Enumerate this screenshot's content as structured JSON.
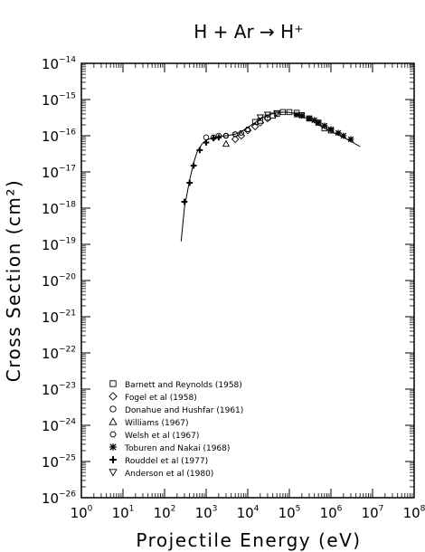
{
  "chart_data": {
    "type": "scatter",
    "title": "H + Ar → H⁺",
    "xlabel": "Projectile Energy (eV)",
    "ylabel": "Cross Section (cm²)",
    "x_scale": "log",
    "y_scale": "log",
    "xlim": [
      1,
      100000000
    ],
    "ylim": [
      1e-26,
      1e-14
    ],
    "x_tick_labels": [
      "10^0",
      "10^1",
      "10^2",
      "10^3",
      "10^4",
      "10^5",
      "10^6",
      "10^7",
      "10^8"
    ],
    "y_tick_labels": [
      "10^-26",
      "10^-25",
      "10^-24",
      "10^-23",
      "10^-22",
      "10^-21",
      "10^-20",
      "10^-19",
      "10^-18",
      "10^-17",
      "10^-16",
      "10^-15",
      "10^-14"
    ],
    "legend_position": "lower-left",
    "fit_curve": {
      "x": [
        250,
        300,
        400,
        500,
        600,
        800,
        1000,
        1500,
        2000,
        3000,
        5000,
        7000,
        10000,
        15000,
        20000,
        30000,
        50000,
        70000,
        100000,
        150000,
        200000,
        300000,
        500000,
        700000,
        1000000,
        2000000,
        3000000,
        5000000
      ],
      "y": [
        1.2e-19,
        1e-18,
        6e-18,
        1.8e-17,
        3.5e-17,
        6e-17,
        7.5e-17,
        9e-17,
        9.5e-17,
        1e-16,
        1.1e-16,
        1.3e-16,
        1.7e-16,
        2.3e-16,
        3e-16,
        3.7e-16,
        4.3e-16,
        4.5e-16,
        4.4e-16,
        4e-16,
        3.5e-16,
        2.8e-16,
        2e-16,
        1.6e-16,
        1.3e-16,
        9e-17,
        7e-17,
        5e-17
      ]
    },
    "series": [
      {
        "name": "Barnett and Reynolds (1958)",
        "marker": "square",
        "x": [
          15000,
          20000,
          30000,
          40000,
          50000,
          70000,
          100000,
          150000,
          200000,
          300000,
          500000,
          700000,
          1000000
        ],
        "y": [
          2.4e-16,
          2.6e-16,
          3.2e-16,
          3.6e-16,
          4e-16,
          4.5e-16,
          4.5e-16,
          4.3e-16,
          3.7e-16,
          3e-16,
          2.3e-16,
          1.6e-16,
          1.4e-16
        ]
      },
      {
        "name": "Fogel et al (1958)",
        "marker": "diamond",
        "x": [
          5000,
          7000,
          10000,
          15000,
          20000,
          30000
        ],
        "y": [
          8e-17,
          1e-16,
          1.4e-16,
          1.8e-16,
          2.3e-16,
          3e-16
        ]
      },
      {
        "name": "Donahue and Hushfar (1961)",
        "marker": "circle",
        "x": [
          1000,
          1500,
          2000,
          3000,
          5000
        ],
        "y": [
          9e-17,
          9e-17,
          1e-16,
          1e-16,
          1.1e-16
        ]
      },
      {
        "name": "Williams (1967)",
        "marker": "triangle-up",
        "x": [
          3000
        ],
        "y": [
          6e-17
        ]
      },
      {
        "name": "Welsh et al (1967)",
        "marker": "hexagon",
        "x": [
          3000,
          5000,
          7000,
          10000
        ],
        "y": [
          1e-16,
          1.1e-16,
          1.2e-16,
          1.5e-16
        ]
      },
      {
        "name": "Toburen and Nakai (1968)",
        "marker": "star",
        "x": [
          150000,
          200000,
          300000,
          400000,
          500000,
          700000,
          1000000,
          1500000,
          2000000,
          3000000
        ],
        "y": [
          3.8e-16,
          3.6e-16,
          3e-16,
          2.7e-16,
          2.3e-16,
          1.9e-16,
          1.5e-16,
          1.2e-16,
          1e-16,
          8e-17
        ]
      },
      {
        "name": "Rouddel et al (1977)",
        "marker": "cross",
        "x": [
          300,
          400,
          500,
          700,
          1000,
          1500,
          2000
        ],
        "y": [
          1.5e-18,
          5e-18,
          1.5e-17,
          4e-17,
          6.5e-17,
          8.5e-17,
          9e-17
        ]
      },
      {
        "name": "Anderson et al (1980)",
        "marker": "triangle-down",
        "x": [
          20000,
          30000,
          50000
        ],
        "y": [
          3.2e-16,
          3.8e-16,
          4.2e-16
        ]
      }
    ]
  }
}
